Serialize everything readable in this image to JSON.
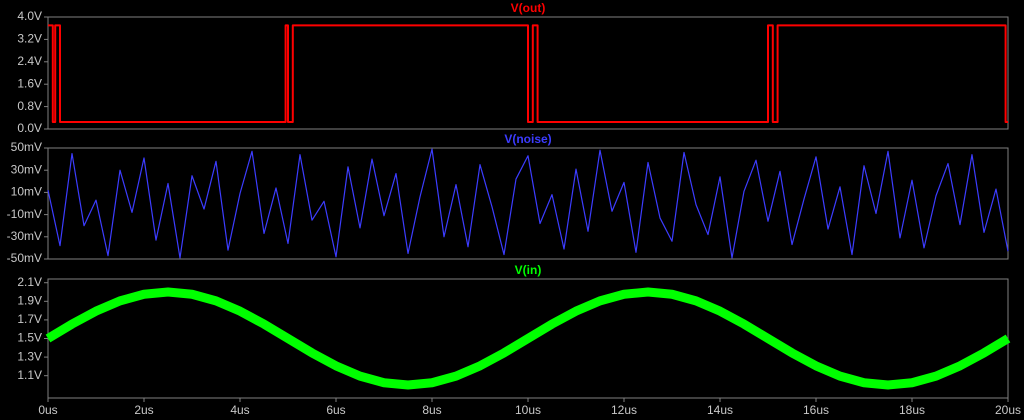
{
  "chart_data": [
    {
      "type": "line",
      "xlim": [
        0,
        20
      ],
      "ylim": [
        0,
        4
      ],
      "yticks": [
        {
          "value": 0,
          "label": "0.0V"
        },
        {
          "value": 0.8,
          "label": "0.8V"
        },
        {
          "value": 1.6,
          "label": "1.6V"
        },
        {
          "value": 2.4,
          "label": "2.4V"
        },
        {
          "value": 3.2,
          "label": "3.2V"
        },
        {
          "value": 4,
          "label": "4.0V"
        }
      ],
      "series": [
        {
          "name": "V(out)",
          "color": "#ff0000",
          "x": [
            0,
            0.1,
            0.1,
            0.15,
            0.15,
            0.25,
            0.25,
            4.95,
            4.95,
            5.0,
            5.0,
            5.1,
            5.1,
            5.2,
            5.2,
            10.0,
            10.0,
            10.1,
            10.1,
            10.2,
            10.2,
            15.0,
            15.0,
            15.1,
            15.1,
            15.2,
            15.2,
            19.95,
            19.95,
            20
          ],
          "values": [
            3.7,
            3.7,
            0.25,
            0.25,
            3.7,
            3.7,
            0.25,
            0.25,
            3.7,
            3.7,
            0.25,
            0.25,
            3.7,
            3.7,
            3.7,
            3.7,
            0.25,
            0.25,
            3.7,
            3.7,
            0.25,
            0.25,
            3.7,
            3.7,
            0.25,
            0.25,
            3.7,
            3.7,
            0.25,
            0.25
          ]
        }
      ]
    },
    {
      "type": "line",
      "xlim": [
        0,
        20
      ],
      "ylim": [
        -50,
        50
      ],
      "yticks": [
        {
          "value": -50,
          "label": "-50mV"
        },
        {
          "value": -30,
          "label": "-30mV"
        },
        {
          "value": -10,
          "label": "-10mV"
        },
        {
          "value": 10,
          "label": "10mV"
        },
        {
          "value": 30,
          "label": "30mV"
        },
        {
          "value": 50,
          "label": "50mV"
        }
      ],
      "series": [
        {
          "name": "V(noise)",
          "color": "#3c3cff",
          "x": [
            0,
            0.25,
            0.5,
            0.75,
            1,
            1.25,
            1.5,
            1.75,
            2,
            2.25,
            2.5,
            2.75,
            3,
            3.25,
            3.5,
            3.75,
            4,
            4.25,
            4.5,
            4.75,
            5,
            5.25,
            5.5,
            5.75,
            6,
            6.25,
            6.5,
            6.75,
            7,
            7.25,
            7.5,
            7.75,
            8,
            8.25,
            8.5,
            8.75,
            9,
            9.25,
            9.5,
            9.75,
            10,
            10.25,
            10.5,
            10.75,
            11,
            11.25,
            11.5,
            11.75,
            12,
            12.25,
            12.5,
            12.75,
            13,
            13.25,
            13.5,
            13.75,
            14,
            14.25,
            14.5,
            14.75,
            15,
            15.25,
            15.5,
            15.75,
            16,
            16.25,
            16.5,
            16.75,
            17,
            17.25,
            17.5,
            17.75,
            18,
            18.25,
            18.5,
            18.75,
            19,
            19.25,
            19.5,
            19.75,
            20
          ],
          "values": [
            12,
            -38,
            45,
            -20,
            3,
            -47,
            30,
            -8,
            41,
            -33,
            18,
            -49,
            25,
            -5,
            38,
            -42,
            9,
            47,
            -27,
            14,
            -36,
            44,
            -15,
            2,
            -48,
            33,
            -22,
            40,
            -11,
            27,
            -45,
            6,
            49,
            -30,
            17,
            -39,
            35,
            -3,
            -46,
            22,
            43,
            -18,
            8,
            -41,
            31,
            -25,
            48,
            -7,
            19,
            -44,
            37,
            -13,
            -34,
            46,
            -1,
            -28,
            24,
            -49,
            11,
            39,
            -16,
            29,
            -37,
            4,
            42,
            -23,
            15,
            -46,
            34,
            -9,
            47,
            -31,
            21,
            -40,
            7,
            36,
            -19,
            44,
            -26,
            13,
            -43
          ]
        }
      ]
    },
    {
      "type": "line",
      "xlim": [
        0,
        20
      ],
      "ylim": [
        0.86,
        2.14
      ],
      "yticks": [
        {
          "value": 1.1,
          "label": "1.1V"
        },
        {
          "value": 1.3,
          "label": "1.3V"
        },
        {
          "value": 1.5,
          "label": "1.5V"
        },
        {
          "value": 1.7,
          "label": "1.7V"
        },
        {
          "value": 1.9,
          "label": "1.9V"
        },
        {
          "value": 2.1,
          "label": "2.1V"
        }
      ],
      "xticks": [
        {
          "value": 0,
          "label": "0us"
        },
        {
          "value": 2,
          "label": "2us"
        },
        {
          "value": 4,
          "label": "4us"
        },
        {
          "value": 6,
          "label": "6us"
        },
        {
          "value": 8,
          "label": "8us"
        },
        {
          "value": 10,
          "label": "10us"
        },
        {
          "value": 12,
          "label": "12us"
        },
        {
          "value": 14,
          "label": "14us"
        },
        {
          "value": 16,
          "label": "16us"
        },
        {
          "value": 18,
          "label": "18us"
        },
        {
          "value": 20,
          "label": "20us"
        }
      ],
      "series": [
        {
          "name": "V(in)",
          "color": "#00ff00",
          "x": [
            0,
            0.5,
            1,
            1.5,
            2,
            2.5,
            3,
            3.5,
            4,
            4.5,
            5,
            5.5,
            6,
            6.5,
            7,
            7.5,
            8,
            8.5,
            9,
            9.5,
            10,
            10.5,
            11,
            11.5,
            12,
            12.5,
            13,
            13.5,
            14,
            14.5,
            15,
            15.5,
            16,
            16.5,
            17,
            17.5,
            18,
            18.5,
            19,
            19.5,
            20
          ],
          "values": [
            1.5,
            1.655,
            1.794,
            1.905,
            1.976,
            2.0,
            1.976,
            1.905,
            1.794,
            1.655,
            1.5,
            1.345,
            1.206,
            1.095,
            1.024,
            1.0,
            1.024,
            1.095,
            1.206,
            1.345,
            1.5,
            1.655,
            1.794,
            1.905,
            1.976,
            2.0,
            1.976,
            1.905,
            1.794,
            1.655,
            1.5,
            1.345,
            1.206,
            1.095,
            1.024,
            1.0,
            1.024,
            1.095,
            1.206,
            1.345,
            1.5
          ]
        }
      ]
    }
  ]
}
